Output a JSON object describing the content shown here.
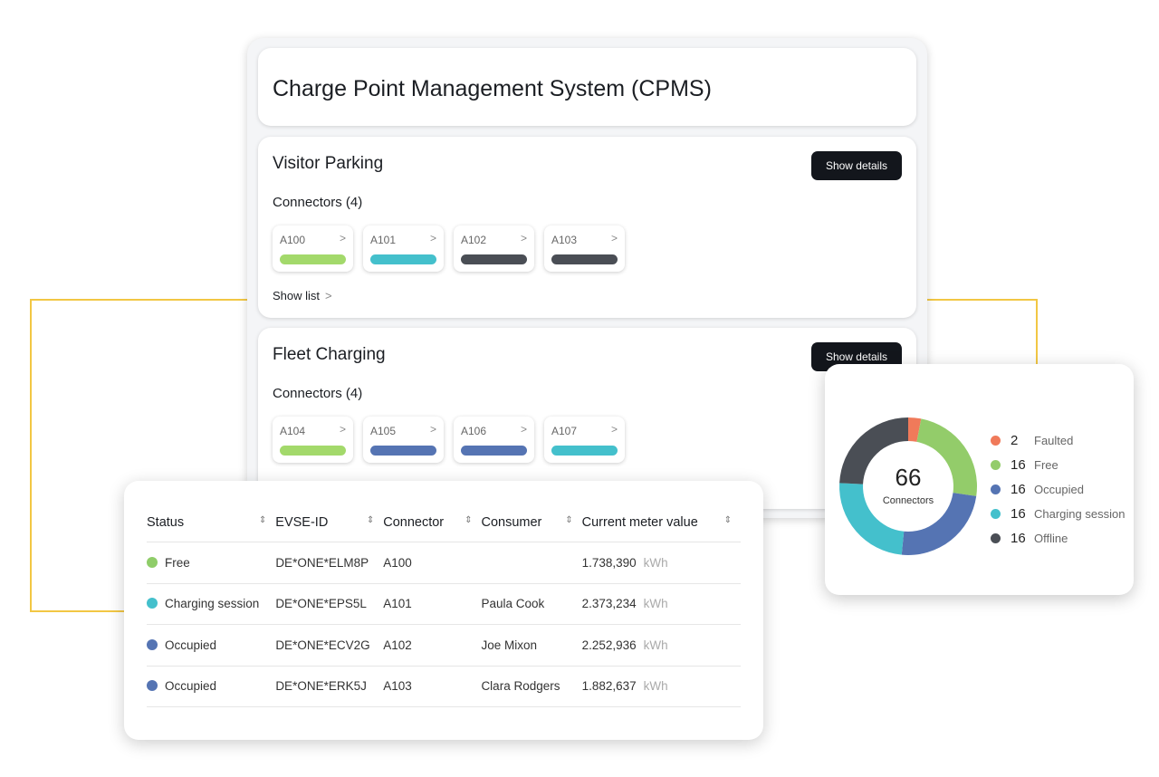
{
  "app": {
    "title": "Charge Point Management System (CPMS)"
  },
  "sites": [
    {
      "name": "Visitor Parking",
      "connectors_label": "Connectors (4)",
      "button": "Show details",
      "show_list": "Show list",
      "connectors": [
        {
          "id": "A100",
          "color": "#a3d96b"
        },
        {
          "id": "A101",
          "color": "#44c0cc"
        },
        {
          "id": "A102",
          "color": "#4a4e55"
        },
        {
          "id": "A103",
          "color": "#4a4e55"
        }
      ]
    },
    {
      "name": "Fleet Charging",
      "connectors_label": "Connectors (4)",
      "button": "Show details",
      "connectors": [
        {
          "id": "A104",
          "color": "#a3d96b"
        },
        {
          "id": "A105",
          "color": "#5574b3"
        },
        {
          "id": "A106",
          "color": "#5574b3"
        },
        {
          "id": "A107",
          "color": "#44c0cc"
        }
      ]
    }
  ],
  "table": {
    "headers": [
      "Status",
      "EVSE-ID",
      "Connector",
      "Consumer",
      "Current meter value"
    ],
    "unit": "kWh",
    "rows": [
      {
        "status": "Free",
        "color": "#8fcd69",
        "evse": "DE*ONE*ELM8P",
        "connector": "A100",
        "consumer": "",
        "meter": "1.738,390"
      },
      {
        "status": "Charging session",
        "color": "#44c0cc",
        "evse": "DE*ONE*EPS5L",
        "connector": "A101",
        "consumer": "Paula Cook",
        "meter": "2.373,234"
      },
      {
        "status": "Occupied",
        "color": "#5574b3",
        "evse": "DE*ONE*ECV2G",
        "connector": "A102",
        "consumer": "Joe Mixon",
        "meter": "2.252,936"
      },
      {
        "status": "Occupied",
        "color": "#5574b3",
        "evse": "DE*ONE*ERK5J",
        "connector": "A103",
        "consumer": "Clara Rodgers",
        "meter": "1.882,637"
      }
    ]
  },
  "chart_data": {
    "type": "pie",
    "title": "",
    "total": "66",
    "total_label": "Connectors",
    "categories": [
      "Faulted",
      "Free",
      "Occupied",
      "Charging session",
      "Offline"
    ],
    "values": [
      2,
      16,
      16,
      16,
      16
    ],
    "counts": [
      "2",
      "16",
      "16",
      "16",
      "16"
    ],
    "colors": [
      "#f07a5a",
      "#93cc6a",
      "#5574b3",
      "#44c0cc",
      "#4a4e55"
    ],
    "legend": "right"
  }
}
